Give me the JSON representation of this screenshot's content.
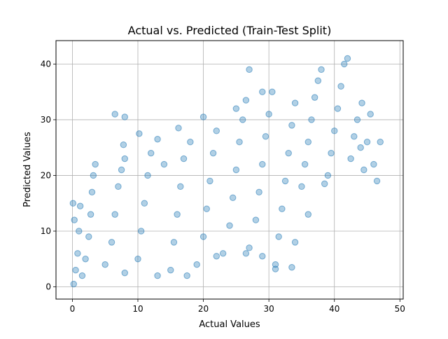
{
  "chart_data": {
    "type": "scatter",
    "title": "Actual vs. Predicted (Train-Test Split)",
    "xlabel": "Actual Values",
    "ylabel": "Predicted Values",
    "xlim": [
      -2.5,
      50.5
    ],
    "ylim": [
      -2.2,
      44.2
    ],
    "xticks": [
      0,
      10,
      20,
      30,
      40,
      50
    ],
    "yticks": [
      0,
      10,
      20,
      30,
      40
    ],
    "grid": true,
    "point_color": "#1f77b4",
    "point_alpha": 0.35,
    "series": [
      {
        "points": [
          [
            0.2,
            0.5
          ],
          [
            0.5,
            3.0
          ],
          [
            0.8,
            6.0
          ],
          [
            1.0,
            10.0
          ],
          [
            1.2,
            14.5
          ],
          [
            0.3,
            12.0
          ],
          [
            0.1,
            15.0
          ],
          [
            1.5,
            2.0
          ],
          [
            2.0,
            5.0
          ],
          [
            2.5,
            9.0
          ],
          [
            2.8,
            13.0
          ],
          [
            3.0,
            17.0
          ],
          [
            3.2,
            20.0
          ],
          [
            3.5,
            22.0
          ],
          [
            5.0,
            4.0
          ],
          [
            6.0,
            8.0
          ],
          [
            6.5,
            13.0
          ],
          [
            7.0,
            18.0
          ],
          [
            7.5,
            21.0
          ],
          [
            8.0,
            23.0
          ],
          [
            7.8,
            25.5
          ],
          [
            10.0,
            5.0
          ],
          [
            10.5,
            10.0
          ],
          [
            11.0,
            15.0
          ],
          [
            11.5,
            20.0
          ],
          [
            12.0,
            24.0
          ],
          [
            10.2,
            27.5
          ],
          [
            13.0,
            26.5
          ],
          [
            15.0,
            3.0
          ],
          [
            15.5,
            8.0
          ],
          [
            16.0,
            13.0
          ],
          [
            16.5,
            18.0
          ],
          [
            17.0,
            23.0
          ],
          [
            18.0,
            26.0
          ],
          [
            16.2,
            28.5
          ],
          [
            19.0,
            4.0
          ],
          [
            20.0,
            9.0
          ],
          [
            20.5,
            14.0
          ],
          [
            21.0,
            19.0
          ],
          [
            21.5,
            24.0
          ],
          [
            22.0,
            28.0
          ],
          [
            20.0,
            30.5
          ],
          [
            23.0,
            6.0
          ],
          [
            24.0,
            11.0
          ],
          [
            24.5,
            16.0
          ],
          [
            25.0,
            21.0
          ],
          [
            25.5,
            26.0
          ],
          [
            26.0,
            30.0
          ],
          [
            26.5,
            33.5
          ],
          [
            27.0,
            7.0
          ],
          [
            28.0,
            12.0
          ],
          [
            28.5,
            17.0
          ],
          [
            29.0,
            22.0
          ],
          [
            29.5,
            27.0
          ],
          [
            30.0,
            31.0
          ],
          [
            30.5,
            35.0
          ],
          [
            31.0,
            4.0
          ],
          [
            31.5,
            9.0
          ],
          [
            32.0,
            14.0
          ],
          [
            32.5,
            19.0
          ],
          [
            33.0,
            24.0
          ],
          [
            33.5,
            29.0
          ],
          [
            34.0,
            33.0
          ],
          [
            35.0,
            18.0
          ],
          [
            35.5,
            22.0
          ],
          [
            36.0,
            26.0
          ],
          [
            36.5,
            30.0
          ],
          [
            37.0,
            34.0
          ],
          [
            37.5,
            37.0
          ],
          [
            38.0,
            39.0
          ],
          [
            39.0,
            20.0
          ],
          [
            39.5,
            24.0
          ],
          [
            40.0,
            28.0
          ],
          [
            40.5,
            32.0
          ],
          [
            41.0,
            36.0
          ],
          [
            41.5,
            40.0
          ],
          [
            42.0,
            41.0
          ],
          [
            42.5,
            23.0
          ],
          [
            43.0,
            27.0
          ],
          [
            43.5,
            30.0
          ],
          [
            44.0,
            25.0
          ],
          [
            44.5,
            21.0
          ],
          [
            45.0,
            26.0
          ],
          [
            46.0,
            22.0
          ],
          [
            47.0,
            26.0
          ],
          [
            46.5,
            19.0
          ],
          [
            45.5,
            31.0
          ],
          [
            44.2,
            33.0
          ],
          [
            38.5,
            18.5
          ],
          [
            36.0,
            13.0
          ],
          [
            34.0,
            8.0
          ],
          [
            29.0,
            5.5
          ],
          [
            26.5,
            6.0
          ],
          [
            22.0,
            5.5
          ],
          [
            17.5,
            2.0
          ],
          [
            13.0,
            2.0
          ],
          [
            8.0,
            2.5
          ],
          [
            6.5,
            31.0
          ],
          [
            8.0,
            30.5
          ],
          [
            27.0,
            39.0
          ],
          [
            33.5,
            3.5
          ],
          [
            31.0,
            3.2
          ],
          [
            29.0,
            35.0
          ],
          [
            25.0,
            32.0
          ],
          [
            14.0,
            22.0
          ]
        ]
      }
    ]
  }
}
